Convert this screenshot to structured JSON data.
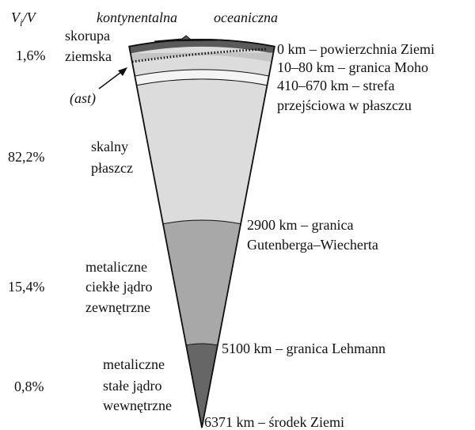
{
  "header": {
    "ratio": {
      "base": "V",
      "subscript": "i",
      "rest": "/V"
    },
    "continental": "kontynentalna",
    "oceanic": "oceaniczna"
  },
  "volume_shares": [
    "1,6%",
    "82,2%",
    "15,4%",
    "0,8%"
  ],
  "layers": [
    {
      "lines": [
        "skorupa",
        "ziemska"
      ]
    },
    {
      "lines": [
        "skalny",
        "płaszcz"
      ]
    },
    {
      "lines": [
        "metaliczne",
        "ciekłe jądro",
        "zewnętrzne"
      ]
    },
    {
      "lines": [
        "metaliczne",
        "stałe jądro",
        "wewnętrzne"
      ]
    }
  ],
  "asthenosphere": "(ast)",
  "boundaries": [
    {
      "lines": [
        "0 km – powierzchnia Ziemi"
      ]
    },
    {
      "lines": [
        "10–80 km – granica Moho"
      ]
    },
    {
      "lines": [
        "410–670 km – strefa",
        "przejściowa w płaszczu"
      ]
    },
    {
      "lines": [
        "2900 km – granica",
        "Gutenberga–Wiecherta"
      ]
    },
    {
      "lines": [
        "5100 km – granica Lehmann"
      ]
    },
    {
      "lines": [
        "6371 km – środek Ziemi"
      ]
    }
  ]
}
